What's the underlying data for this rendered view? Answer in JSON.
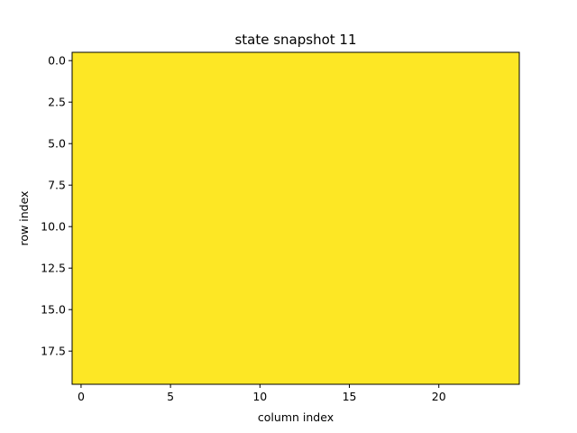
{
  "chart_data": {
    "type": "heatmap",
    "title": "state snapshot 11",
    "xlabel": "column index",
    "ylabel": "row index",
    "n_rows": 20,
    "n_cols": 25,
    "xlim": [
      -0.5,
      24.5
    ],
    "ylim": [
      19.5,
      -0.5
    ],
    "xticks": [
      0,
      5,
      10,
      15,
      20
    ],
    "xtick_labels": [
      "0",
      "5",
      "10",
      "15",
      "20"
    ],
    "yticks": [
      0,
      2.5,
      5,
      7.5,
      10,
      12.5,
      15,
      17.5
    ],
    "ytick_labels": [
      "0.0",
      "2.5",
      "5.0",
      "7.5",
      "10.0",
      "12.5",
      "15.0",
      "17.5"
    ],
    "uniform_value_color": "#fde725",
    "grid": false,
    "legend": "none"
  }
}
